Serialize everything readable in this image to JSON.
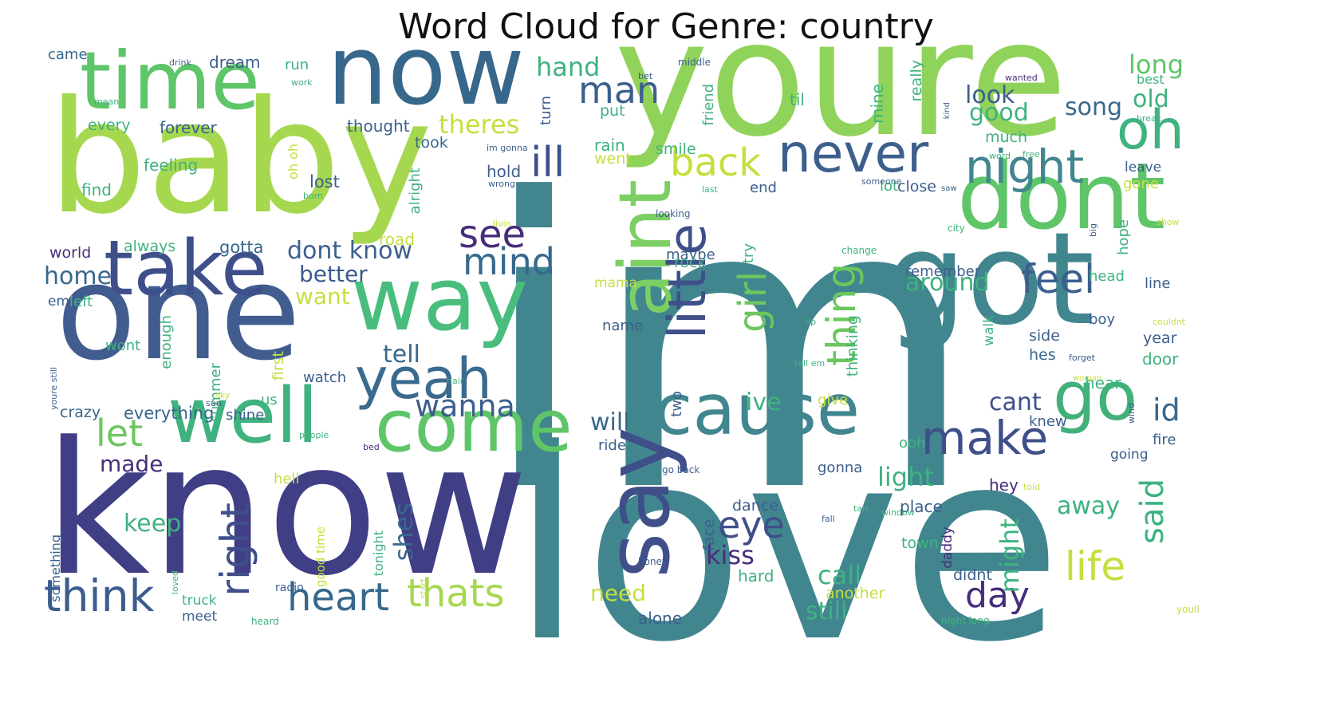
{
  "title": "Word Cloud for Genre: country",
  "words": [
    {
      "text": "im",
      "c": "#41868f"
    },
    {
      "text": "love",
      "c": "#41868f"
    },
    {
      "text": "know",
      "c": "#403e85"
    },
    {
      "text": "youre",
      "c": "#90d35a"
    },
    {
      "text": "baby",
      "c": "#a6d84f"
    },
    {
      "text": "one",
      "c": "#415c8f"
    },
    {
      "text": "got",
      "c": "#41868f"
    },
    {
      "text": "now",
      "c": "#37688c"
    },
    {
      "text": "time",
      "c": "#5ec569"
    },
    {
      "text": "dont",
      "c": "#5ec569"
    },
    {
      "text": "take",
      "c": "#3f4f8a"
    },
    {
      "text": "way",
      "c": "#48bd7d"
    },
    {
      "text": "well",
      "c": "#3fb27f"
    },
    {
      "text": "come",
      "c": "#5ec569"
    },
    {
      "text": "cause",
      "c": "#41868f"
    },
    {
      "text": "yeah",
      "c": "#3a6a8d"
    },
    {
      "text": "say",
      "c": "#3f4f8a"
    },
    {
      "text": "go",
      "c": "#42b079"
    },
    {
      "text": "never",
      "c": "#3c5f8d"
    },
    {
      "text": "night",
      "c": "#41868f"
    },
    {
      "text": "oh",
      "c": "#3fb27f"
    },
    {
      "text": "aint",
      "c": "#7ccf63"
    },
    {
      "text": "little",
      "c": "#3f4f8a"
    },
    {
      "text": "back",
      "c": "#c5df3f"
    },
    {
      "text": "ill",
      "c": "#3f4f8a"
    },
    {
      "text": "make",
      "c": "#3f4f8a"
    },
    {
      "text": "think",
      "c": "#3b5c8e"
    },
    {
      "text": "heart",
      "c": "#37688c"
    },
    {
      "text": "thats",
      "c": "#a6d84f"
    },
    {
      "text": "life",
      "c": "#c5df3f"
    },
    {
      "text": "right",
      "c": "#3f4f8a"
    },
    {
      "text": "thing",
      "c": "#6cc65e"
    },
    {
      "text": "girl",
      "c": "#6cc65e"
    },
    {
      "text": "feel",
      "c": "#3c5f8d"
    },
    {
      "text": "see",
      "c": "#472d7b"
    },
    {
      "text": "mind",
      "c": "#37688c"
    },
    {
      "text": "man",
      "c": "#3c5f8d"
    },
    {
      "text": "let",
      "c": "#6cc65e"
    },
    {
      "text": "wanna",
      "c": "#3c5f8d"
    },
    {
      "text": "day",
      "c": "#472d7b"
    },
    {
      "text": "eye",
      "c": "#3f4f8a"
    },
    {
      "text": "said",
      "c": "#3fb27f"
    },
    {
      "text": "id",
      "c": "#37688c"
    },
    {
      "text": "long",
      "c": "#5ec569"
    },
    {
      "text": "old",
      "c": "#3fb27f"
    },
    {
      "text": "song",
      "c": "#37688c"
    },
    {
      "text": "look",
      "c": "#3c5f8d"
    },
    {
      "text": "good",
      "c": "#3fb27f"
    },
    {
      "text": "hand",
      "c": "#3fb27f"
    },
    {
      "text": "theres",
      "c": "#c5df3f"
    },
    {
      "text": "dont know",
      "c": "#3c5f8d"
    },
    {
      "text": "better",
      "c": "#3b5c8e"
    },
    {
      "text": "want",
      "c": "#c5df3f"
    },
    {
      "text": "tell",
      "c": "#37688c"
    },
    {
      "text": "will",
      "c": "#37688c"
    },
    {
      "text": "home",
      "c": "#37688c"
    },
    {
      "text": "keep",
      "c": "#3fb27f"
    },
    {
      "text": "made",
      "c": "#472d7b"
    },
    {
      "text": "light",
      "c": "#3fb27f"
    },
    {
      "text": "away",
      "c": "#3fb27f"
    },
    {
      "text": "call",
      "c": "#3fb27f"
    },
    {
      "text": "still",
      "c": "#3fb27f"
    },
    {
      "text": "kiss",
      "c": "#472d7b"
    },
    {
      "text": "might",
      "c": "#3fb27f"
    },
    {
      "text": "need",
      "c": "#c5df3f"
    },
    {
      "text": "around",
      "c": "#3fb27f"
    },
    {
      "text": "ive",
      "c": "#3fb27f"
    },
    {
      "text": "cant",
      "c": "#3f4f8a"
    },
    {
      "text": "shes",
      "c": "#37688c"
    },
    {
      "text": "crazy",
      "c": "#37688c"
    },
    {
      "text": "everything",
      "c": "#37688c"
    },
    {
      "text": "feeling",
      "c": "#3fb27f"
    },
    {
      "text": "forever",
      "c": "#3c5f8d"
    },
    {
      "text": "thought",
      "c": "#3c5f8d"
    },
    {
      "text": "came",
      "c": "#37688c"
    },
    {
      "text": "dream",
      "c": "#3c5f8d"
    },
    {
      "text": "every",
      "c": "#3fb27f"
    },
    {
      "text": "find",
      "c": "#3fb27f"
    },
    {
      "text": "world",
      "c": "#472d7b"
    },
    {
      "text": "always",
      "c": "#3fb27f"
    },
    {
      "text": "gotta",
      "c": "#37688c"
    },
    {
      "text": "road",
      "c": "#c5df3f"
    },
    {
      "text": "lost",
      "c": "#3c5f8d"
    },
    {
      "text": "took",
      "c": "#37688c"
    },
    {
      "text": "hold",
      "c": "#3c5f8d"
    },
    {
      "text": "rain",
      "c": "#3fb27f"
    },
    {
      "text": "went",
      "c": "#c5df3f"
    },
    {
      "text": "smile",
      "c": "#3fb27f"
    },
    {
      "text": "put",
      "c": "#3fb27f"
    },
    {
      "text": "turn",
      "c": "#3c5f8d"
    },
    {
      "text": "friend",
      "c": "#3fb27f"
    },
    {
      "text": "til",
      "c": "#3fb27f"
    },
    {
      "text": "mine",
      "c": "#3fb27f"
    },
    {
      "text": "really",
      "c": "#3fb27f"
    },
    {
      "text": "much",
      "c": "#3fb27f"
    },
    {
      "text": "best",
      "c": "#3fb27f"
    },
    {
      "text": "leave",
      "c": "#3c5f8d"
    },
    {
      "text": "gone",
      "c": "#c5df3f"
    },
    {
      "text": "lot",
      "c": "#3fb27f"
    },
    {
      "text": "close",
      "c": "#3c5f8d"
    },
    {
      "text": "end",
      "c": "#3c5f8d"
    },
    {
      "text": "maybe",
      "c": "#3c5f8d"
    },
    {
      "text": "rock",
      "c": "#3fb27f"
    },
    {
      "text": "mama",
      "c": "#c5df3f"
    },
    {
      "text": "try",
      "c": "#3fb27f"
    },
    {
      "text": "remember",
      "c": "#3c5f8d"
    },
    {
      "text": "hope",
      "c": "#3fb27f"
    },
    {
      "text": "head",
      "c": "#3fb27f"
    },
    {
      "text": "line",
      "c": "#3c5f8d"
    },
    {
      "text": "boy",
      "c": "#3c5f8d"
    },
    {
      "text": "year",
      "c": "#3c5f8d"
    },
    {
      "text": "door",
      "c": "#3fb27f"
    },
    {
      "text": "side",
      "c": "#3c5f8d"
    },
    {
      "text": "hes",
      "c": "#37688c"
    },
    {
      "text": "hear",
      "c": "#3fb27f"
    },
    {
      "text": "walk",
      "c": "#3fb27f"
    },
    {
      "text": "thinking",
      "c": "#3fb27f"
    },
    {
      "text": "knew",
      "c": "#3c5f8d"
    },
    {
      "text": "fire",
      "c": "#3c5f8d"
    },
    {
      "text": "going",
      "c": "#3c5f8d"
    },
    {
      "text": "ooh",
      "c": "#3fb27f"
    },
    {
      "text": "gonna",
      "c": "#3c5f8d"
    },
    {
      "text": "hey",
      "c": "#472d7b"
    },
    {
      "text": "place",
      "c": "#3c5f8d"
    },
    {
      "text": "dance",
      "c": "#3c5f8d"
    },
    {
      "text": "face",
      "c": "#3c5f8d"
    },
    {
      "text": "town",
      "c": "#3fb27f"
    },
    {
      "text": "daddy",
      "c": "#472d7b"
    },
    {
      "text": "didnt",
      "c": "#3c5f8d"
    },
    {
      "text": "another",
      "c": "#c5df3f"
    },
    {
      "text": "hard",
      "c": "#3fb27f"
    },
    {
      "text": "alone",
      "c": "#3c5f8d"
    },
    {
      "text": "name",
      "c": "#3c5f8d"
    },
    {
      "text": "ride",
      "c": "#3c5f8d"
    },
    {
      "text": "two",
      "c": "#3c5f8d"
    },
    {
      "text": "give",
      "c": "#c5df3f"
    },
    {
      "text": "watch",
      "c": "#3c5f8d"
    },
    {
      "text": "us",
      "c": "#3fb27f"
    },
    {
      "text": "first",
      "c": "#c5df3f"
    },
    {
      "text": "summer",
      "c": "#3fb27f"
    },
    {
      "text": "shine",
      "c": "#3c5f8d"
    },
    {
      "text": "enough",
      "c": "#3fb27f"
    },
    {
      "text": "wont",
      "c": "#3fb27f"
    },
    {
      "text": "em",
      "c": "#3c5f8d"
    },
    {
      "text": "left",
      "c": "#3fb27f"
    },
    {
      "text": "run",
      "c": "#3fb27f"
    },
    {
      "text": "alright",
      "c": "#3fb27f"
    },
    {
      "text": "oh oh",
      "c": "#c5df3f"
    },
    {
      "text": "hell",
      "c": "#c5df3f"
    },
    {
      "text": "tonight",
      "c": "#3fb27f"
    },
    {
      "text": "good time",
      "c": "#c5df3f"
    },
    {
      "text": "truck",
      "c": "#3fb27f"
    },
    {
      "text": "meet",
      "c": "#3c5f8d"
    },
    {
      "text": "something",
      "c": "#3c5f8d"
    },
    {
      "text": "radio",
      "c": "#3c5f8d"
    },
    {
      "text": "loved",
      "c": "#3fb27f"
    },
    {
      "text": "start",
      "c": "#c5df3f"
    },
    {
      "text": "heard",
      "c": "#3fb27f"
    },
    {
      "text": "honey",
      "c": "#3c5f8d"
    },
    {
      "text": "fall",
      "c": "#3c5f8d"
    },
    {
      "text": "talk",
      "c": "#3fb27f"
    },
    {
      "text": "window",
      "c": "#3fb27f"
    },
    {
      "text": "night long",
      "c": "#3fb27f"
    },
    {
      "text": "youll",
      "c": "#c5df3f"
    },
    {
      "text": "told",
      "c": "#c5df3f"
    },
    {
      "text": "woman",
      "c": "#c5df3f"
    },
    {
      "text": "forget",
      "c": "#3c5f8d"
    },
    {
      "text": "couldnt",
      "c": "#c5df3f"
    },
    {
      "text": "wind",
      "c": "#3c5f8d"
    },
    {
      "text": "lip",
      "c": "#3fb27f"
    },
    {
      "text": "tell em",
      "c": "#3fb27f"
    },
    {
      "text": "change",
      "c": "#3fb27f"
    },
    {
      "text": "city",
      "c": "#3fb27f"
    },
    {
      "text": "big",
      "c": "#3c5f8d"
    },
    {
      "text": "show",
      "c": "#c5df3f"
    },
    {
      "text": "someone",
      "c": "#3c5f8d"
    },
    {
      "text": "saw",
      "c": "#3c5f8d"
    },
    {
      "text": "last",
      "c": "#3fb27f"
    },
    {
      "text": "looking",
      "c": "#3c5f8d"
    },
    {
      "text": "livin",
      "c": "#c5df3f"
    },
    {
      "text": "word",
      "c": "#3fb27f"
    },
    {
      "text": "free",
      "c": "#3fb27f"
    },
    {
      "text": "kind",
      "c": "#3c5f8d"
    },
    {
      "text": "break",
      "c": "#3fb27f"
    },
    {
      "text": "wanted",
      "c": "#472d7b"
    },
    {
      "text": "im gonna",
      "c": "#3c5f8d"
    },
    {
      "text": "wrong",
      "c": "#3c5f8d"
    },
    {
      "text": "born",
      "c": "#3fb27f"
    },
    {
      "text": "middle",
      "c": "#3c5f8d"
    },
    {
      "text": "bet",
      "c": "#3c5f8d"
    },
    {
      "text": "drink",
      "c": "#3c5f8d"
    },
    {
      "text": "work",
      "c": "#3fb27f"
    },
    {
      "text": "mean",
      "c": "#3fb27f"
    },
    {
      "text": "people",
      "c": "#3fb27f"
    },
    {
      "text": "bed",
      "c": "#472d7b"
    },
    {
      "text": "go back",
      "c": "#3c5f8d"
    },
    {
      "text": "hair",
      "c": "#3fb27f"
    },
    {
      "text": "sky",
      "c": "#c5df3f"
    },
    {
      "text": "sun",
      "c": "#3c5f8d"
    },
    {
      "text": "youre still",
      "c": "#3c5f8d"
    }
  ]
}
